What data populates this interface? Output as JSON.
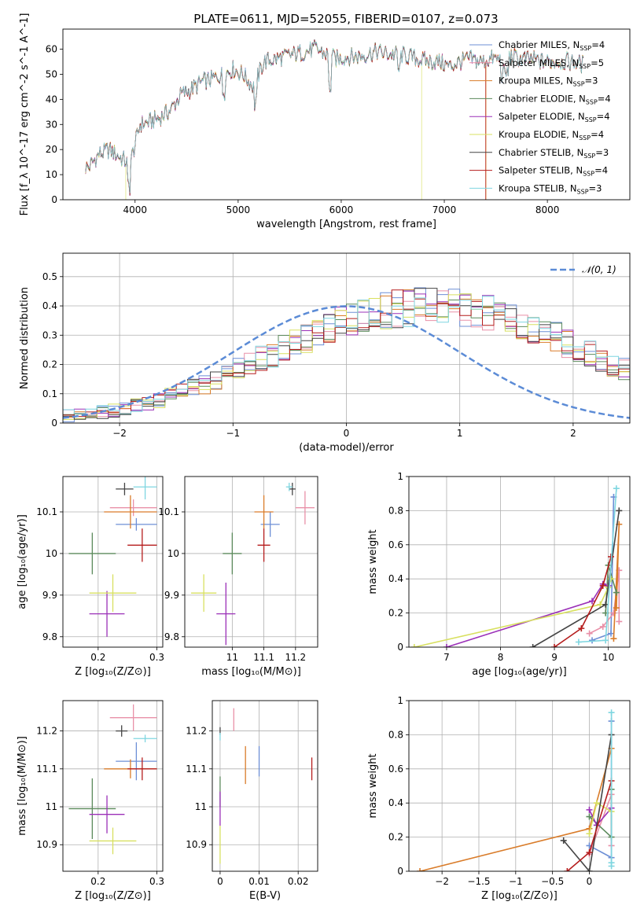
{
  "figure": {
    "title": "PLATE=0611, MJD=52055, FIBERID=0107, z=0.073"
  },
  "colors": {
    "Chabrier MILES": "#6d8fd6",
    "Salpeter MILES": "#e990a8",
    "Kroupa MILES": "#d97c2a",
    "Chabrier ELODIE": "#5c8a5c",
    "Salpeter ELODIE": "#9b30b8",
    "Kroupa ELODIE": "#d8e060",
    "Chabrier STELIB": "#444444",
    "Salpeter STELIB": "#b51c1c",
    "Kroupa STELIB": "#7fd6e0"
  },
  "chart_data": [
    {
      "type": "line",
      "panel": "spectrum",
      "xlabel": "wavelength [Angstrom, rest frame]",
      "ylabel": "Flux [f_λ 10^-17 erg cm^-2 s^-1 A^-1]",
      "xlim": [
        3300,
        8800
      ],
      "ylim": [
        0,
        68
      ],
      "xticks": [
        4000,
        5000,
        6000,
        7000,
        8000
      ],
      "yticks": [
        0,
        10,
        20,
        30,
        40,
        50,
        60
      ],
      "grid": false,
      "legend_position": "top-right",
      "x": [
        3550,
        3650,
        3750,
        3850,
        3950,
        4050,
        4150,
        4250,
        4350,
        4450,
        4550,
        4650,
        4750,
        4850,
        4950,
        5050,
        5150,
        5250,
        5350,
        5450,
        5550,
        5650,
        5750,
        5850,
        5950,
        6050,
        6150,
        6250,
        6350,
        6450,
        6550,
        6650,
        6750,
        6850,
        6950,
        7050,
        7150,
        7250,
        7350,
        7450,
        7550,
        7650,
        7750,
        7850,
        7950,
        8050,
        8150,
        8250,
        8350
      ],
      "y": [
        13,
        18,
        20,
        17,
        14,
        30,
        31,
        33,
        36,
        42,
        44,
        47,
        48,
        50,
        52,
        50,
        45,
        55,
        56,
        57,
        58,
        59,
        60,
        58,
        56,
        57,
        57,
        58,
        59,
        58,
        58,
        57,
        56,
        55,
        55,
        53,
        55,
        56,
        55,
        56,
        56,
        57,
        56,
        56,
        55,
        55,
        55,
        55,
        54
      ],
      "series": [
        {
          "name": "Chabrier MILES, N_SSP=4"
        },
        {
          "name": "Salpeter MILES, N_SSP=5"
        },
        {
          "name": "Kroupa MILES, N_SSP=3"
        },
        {
          "name": "Chabrier ELODIE, N_SSP=4"
        },
        {
          "name": "Salpeter ELODIE, N_SSP=4"
        },
        {
          "name": "Kroupa ELODIE, N_SSP=4"
        },
        {
          "name": "Chabrier STELIB, N_SSP=3"
        },
        {
          "name": "Salpeter STELIB, N_SSP=4"
        },
        {
          "name": "Kroupa STELIB, N_SSP=3"
        }
      ]
    },
    {
      "type": "bar",
      "panel": "residual histogram",
      "xlabel": "(data-model)/error",
      "ylabel": "Normed distribution",
      "xlim": [
        -2.5,
        2.5
      ],
      "ylim": [
        0,
        0.58
      ],
      "xticks": [
        -2,
        -1,
        0,
        1,
        2
      ],
      "yticks": [
        0.0,
        0.1,
        0.2,
        0.3,
        0.4,
        0.5
      ],
      "grid": true,
      "legend_position": "top-right",
      "legend": [
        "𝒩(0, 1)"
      ],
      "bin_width": 0.1,
      "bin_start": -2.5,
      "envelope": [
        0.025,
        0.028,
        0.032,
        0.037,
        0.043,
        0.05,
        0.058,
        0.068,
        0.079,
        0.091,
        0.104,
        0.118,
        0.133,
        0.149,
        0.166,
        0.183,
        0.201,
        0.219,
        0.237,
        0.256,
        0.274,
        0.291,
        0.308,
        0.324,
        0.339,
        0.352,
        0.364,
        0.374,
        0.383,
        0.39,
        0.395,
        0.398,
        0.399,
        0.398,
        0.395,
        0.39,
        0.383,
        0.374,
        0.364,
        0.352,
        0.339,
        0.324,
        0.308,
        0.291,
        0.274,
        0.256,
        0.237,
        0.219,
        0.201,
        0.183
      ]
    },
    {
      "type": "scatter",
      "panel": "age vs Z",
      "xlabel": "Z [log10(Z/Z⊙)]",
      "ylabel": "age  [log10(age/yr)]",
      "xlim": [
        0.14,
        0.31
      ],
      "ylim": [
        9.775,
        10.185
      ],
      "xticks": [
        0.2,
        0.3
      ],
      "yticks": [
        9.8,
        9.9,
        10.0,
        10.1
      ],
      "grid": true,
      "points": [
        {
          "series": "Chabrier MILES",
          "x": 0.265,
          "y": 10.07,
          "xerr": 0.035,
          "yerr": 0.015
        },
        {
          "series": "Salpeter MILES",
          "x": 0.26,
          "y": 10.11,
          "xerr": 0.04,
          "yerr": 0.02
        },
        {
          "series": "Kroupa MILES",
          "x": 0.255,
          "y": 10.1,
          "xerr": 0.045,
          "yerr": 0.04
        },
        {
          "series": "Chabrier ELODIE",
          "x": 0.19,
          "y": 10.0,
          "xerr": 0.04,
          "yerr": 0.05
        },
        {
          "series": "Salpeter ELODIE",
          "x": 0.215,
          "y": 9.855,
          "xerr": 0.03,
          "yerr": 0.055
        },
        {
          "series": "Kroupa ELODIE",
          "x": 0.225,
          "y": 9.905,
          "xerr": 0.04,
          "yerr": 0.045
        },
        {
          "series": "Chabrier STELIB",
          "x": 0.245,
          "y": 10.155,
          "xerr": 0.015,
          "yerr": 0.015
        },
        {
          "series": "Salpeter STELIB",
          "x": 0.275,
          "y": 10.02,
          "xerr": 0.025,
          "yerr": 0.04
        },
        {
          "series": "Kroupa STELIB",
          "x": 0.28,
          "y": 10.16,
          "xerr": 0.02,
          "yerr": 0.03
        }
      ]
    },
    {
      "type": "scatter",
      "panel": "age vs mass",
      "xlabel": "mass [log10(M/M⊙)]",
      "ylabel": "",
      "xlim": [
        10.85,
        11.27
      ],
      "ylim": [
        9.775,
        10.185
      ],
      "xticks": [
        11.0,
        11.1,
        11.2
      ],
      "yticks": [
        9.8,
        9.9,
        10.0,
        10.1
      ],
      "grid": true,
      "points": [
        {
          "series": "Chabrier MILES",
          "x": 11.12,
          "y": 10.07,
          "xerr": 0.03,
          "yerr": 0.03
        },
        {
          "series": "Salpeter MILES",
          "x": 11.23,
          "y": 10.11,
          "xerr": 0.03,
          "yerr": 0.04
        },
        {
          "series": "Kroupa MILES",
          "x": 11.1,
          "y": 10.1,
          "xerr": 0.03,
          "yerr": 0.04
        },
        {
          "series": "Chabrier ELODIE",
          "x": 11.0,
          "y": 10.0,
          "xerr": 0.03,
          "yerr": 0.05
        },
        {
          "series": "Salpeter ELODIE",
          "x": 10.98,
          "y": 9.855,
          "xerr": 0.03,
          "yerr": 0.075
        },
        {
          "series": "Kroupa ELODIE",
          "x": 10.91,
          "y": 9.905,
          "xerr": 0.04,
          "yerr": 0.045
        },
        {
          "series": "Chabrier STELIB",
          "x": 11.19,
          "y": 10.155,
          "xerr": 0.01,
          "yerr": 0.015
        },
        {
          "series": "Salpeter STELIB",
          "x": 11.1,
          "y": 10.02,
          "xerr": 0.02,
          "yerr": 0.04
        },
        {
          "series": "Kroupa STELIB",
          "x": 11.18,
          "y": 10.16,
          "xerr": 0.01,
          "yerr": 0.01
        }
      ]
    },
    {
      "type": "line",
      "panel": "mass weight vs age",
      "xlabel": "age  [log10(age/yr)]",
      "ylabel": "mass weight",
      "xlim": [
        6.3,
        10.4
      ],
      "ylim": [
        0,
        1.0
      ],
      "xticks": [
        7,
        8,
        9,
        10
      ],
      "yticks": [
        0.0,
        0.2,
        0.4,
        0.6,
        0.8,
        1.0
      ],
      "grid": true,
      "series": [
        {
          "series": "Chabrier MILES",
          "x": [
            9.7,
            10.05,
            10.1
          ],
          "y": [
            0.04,
            0.08,
            0.88
          ]
        },
        {
          "series": "Salpeter MILES",
          "x": [
            9.65,
            9.9,
            10.1,
            10.2,
            10.2
          ],
          "y": [
            0.08,
            0.12,
            0.2,
            0.45,
            0.15
          ]
        },
        {
          "series": "Kroupa MILES",
          "x": [
            10.1,
            10.2,
            10.15
          ],
          "y": [
            0.05,
            0.72,
            0.23
          ]
        },
        {
          "series": "Chabrier ELODIE",
          "x": [
            9.95,
            10.0,
            10.15
          ],
          "y": [
            0.2,
            0.48,
            0.32
          ]
        },
        {
          "series": "Salpeter ELODIE",
          "x": [
            7.0,
            9.7,
            9.9,
            10.0
          ],
          "y": [
            0.0,
            0.27,
            0.37,
            0.36
          ]
        },
        {
          "series": "Kroupa ELODIE",
          "x": [
            6.4,
            9.85,
            10.0,
            10.05
          ],
          "y": [
            0.0,
            0.25,
            0.35,
            0.4
          ]
        },
        {
          "series": "Chabrier STELIB",
          "x": [
            8.6,
            9.95,
            10.2
          ],
          "y": [
            0.0,
            0.25,
            0.8
          ]
        },
        {
          "series": "Salpeter STELIB",
          "x": [
            9.0,
            9.5,
            9.9,
            10.05
          ],
          "y": [
            0.0,
            0.11,
            0.36,
            0.53
          ]
        },
        {
          "series": "Kroupa STELIB",
          "x": [
            9.45,
            9.95,
            10.15
          ],
          "y": [
            0.03,
            0.04,
            0.93
          ]
        }
      ]
    },
    {
      "type": "scatter",
      "panel": "mass vs Z",
      "xlabel": "Z [log10(Z/Z⊙)]",
      "ylabel": "mass [log10(M/M⊙)]",
      "xlim": [
        0.14,
        0.31
      ],
      "ylim": [
        10.83,
        11.28
      ],
      "xticks": [
        0.2,
        0.3
      ],
      "yticks": [
        10.9,
        11.0,
        11.1,
        11.2
      ],
      "grid": true,
      "points": [
        {
          "series": "Chabrier MILES",
          "x": 0.265,
          "y": 11.12,
          "xerr": 0.035,
          "yerr": 0.05
        },
        {
          "series": "Salpeter MILES",
          "x": 0.26,
          "y": 11.235,
          "xerr": 0.04,
          "yerr": 0.035
        },
        {
          "series": "Kroupa MILES",
          "x": 0.255,
          "y": 11.1,
          "xerr": 0.045,
          "yerr": 0.025
        },
        {
          "series": "Chabrier ELODIE",
          "x": 0.19,
          "y": 10.995,
          "xerr": 0.04,
          "yerr": 0.08
        },
        {
          "series": "Salpeter ELODIE",
          "x": 0.215,
          "y": 10.98,
          "xerr": 0.03,
          "yerr": 0.05
        },
        {
          "series": "Kroupa ELODIE",
          "x": 0.225,
          "y": 10.91,
          "xerr": 0.04,
          "yerr": 0.035
        },
        {
          "series": "Chabrier STELIB",
          "x": 0.24,
          "y": 11.2,
          "xerr": 0.01,
          "yerr": 0.015
        },
        {
          "series": "Salpeter STELIB",
          "x": 0.275,
          "y": 11.1,
          "xerr": 0.025,
          "yerr": 0.03
        },
        {
          "series": "Kroupa STELIB",
          "x": 0.28,
          "y": 11.18,
          "xerr": 0.02,
          "yerr": 0.01
        }
      ]
    },
    {
      "type": "scatter",
      "panel": "mass vs E(B-V)",
      "xlabel": "E(B-V)",
      "ylabel": "",
      "xlim": [
        -0.002,
        0.025
      ],
      "ylim": [
        10.83,
        11.28
      ],
      "xticks": [
        0.0,
        0.01,
        0.02
      ],
      "yticks": [
        10.9,
        11.0,
        11.1,
        11.2
      ],
      "grid": true,
      "points": [
        {
          "series": "Chabrier MILES",
          "x": 0.01,
          "y": 11.12,
          "yerr": 0.04
        },
        {
          "series": "Salpeter MILES",
          "x": 0.0035,
          "y": 11.23,
          "yerr": 0.03
        },
        {
          "series": "Kroupa MILES",
          "x": 0.0065,
          "y": 11.11,
          "yerr": 0.05
        },
        {
          "series": "Chabrier ELODIE",
          "x": 0.0,
          "y": 11.04,
          "yerr": 0.04
        },
        {
          "series": "Salpeter ELODIE",
          "x": 0.0,
          "y": 10.995,
          "yerr": 0.045
        },
        {
          "series": "Kroupa ELODIE",
          "x": 0.0,
          "y": 10.9,
          "yerr": 0.05
        },
        {
          "series": "Chabrier STELIB",
          "x": 0.0,
          "y": 11.2,
          "yerr": 0.01
        },
        {
          "series": "Salpeter STELIB",
          "x": 0.0235,
          "y": 11.1,
          "yerr": 0.03
        },
        {
          "series": "Kroupa STELIB",
          "x": 0.0,
          "y": 11.185,
          "yerr": 0.01
        }
      ]
    },
    {
      "type": "line",
      "panel": "mass weight vs Z",
      "xlabel": "Z [log10(Z/Z⊙)]",
      "ylabel": "mass weight",
      "xlim": [
        -2.45,
        0.55
      ],
      "ylim": [
        0,
        1.0
      ],
      "xticks": [
        -2.0,
        -1.5,
        -1.0,
        -0.5,
        0.0
      ],
      "yticks": [
        0.0,
        0.2,
        0.4,
        0.6,
        0.8,
        1.0
      ],
      "grid": true,
      "series": [
        {
          "series": "Chabrier MILES",
          "x": [
            0.0,
            0.3,
            0.3
          ],
          "y": [
            0.15,
            0.08,
            0.88
          ]
        },
        {
          "series": "Salpeter MILES",
          "x": [
            0.0,
            0.3,
            0.3
          ],
          "y": [
            0.1,
            0.45,
            0.15
          ]
        },
        {
          "series": "Kroupa MILES",
          "x": [
            -2.3,
            0.0,
            0.3
          ],
          "y": [
            0.0,
            0.25,
            0.72
          ]
        },
        {
          "series": "Chabrier ELODIE",
          "x": [
            0.0,
            0.3,
            0.3
          ],
          "y": [
            0.32,
            0.2,
            0.48
          ]
        },
        {
          "series": "Salpeter ELODIE",
          "x": [
            0.0,
            0.1,
            0.3
          ],
          "y": [
            0.36,
            0.27,
            0.37
          ]
        },
        {
          "series": "Kroupa ELODIE",
          "x": [
            0.0,
            0.1,
            0.3
          ],
          "y": [
            0.22,
            0.4,
            0.35
          ]
        },
        {
          "series": "Chabrier STELIB",
          "x": [
            -0.35,
            0.0,
            0.3
          ],
          "y": [
            0.18,
            0.0,
            0.8
          ]
        },
        {
          "series": "Salpeter STELIB",
          "x": [
            -0.3,
            0.0,
            0.3
          ],
          "y": [
            0.0,
            0.11,
            0.53
          ]
        },
        {
          "series": "Kroupa STELIB",
          "x": [
            0.3,
            0.3,
            0.3
          ],
          "y": [
            0.03,
            0.05,
            0.93
          ]
        }
      ]
    }
  ]
}
